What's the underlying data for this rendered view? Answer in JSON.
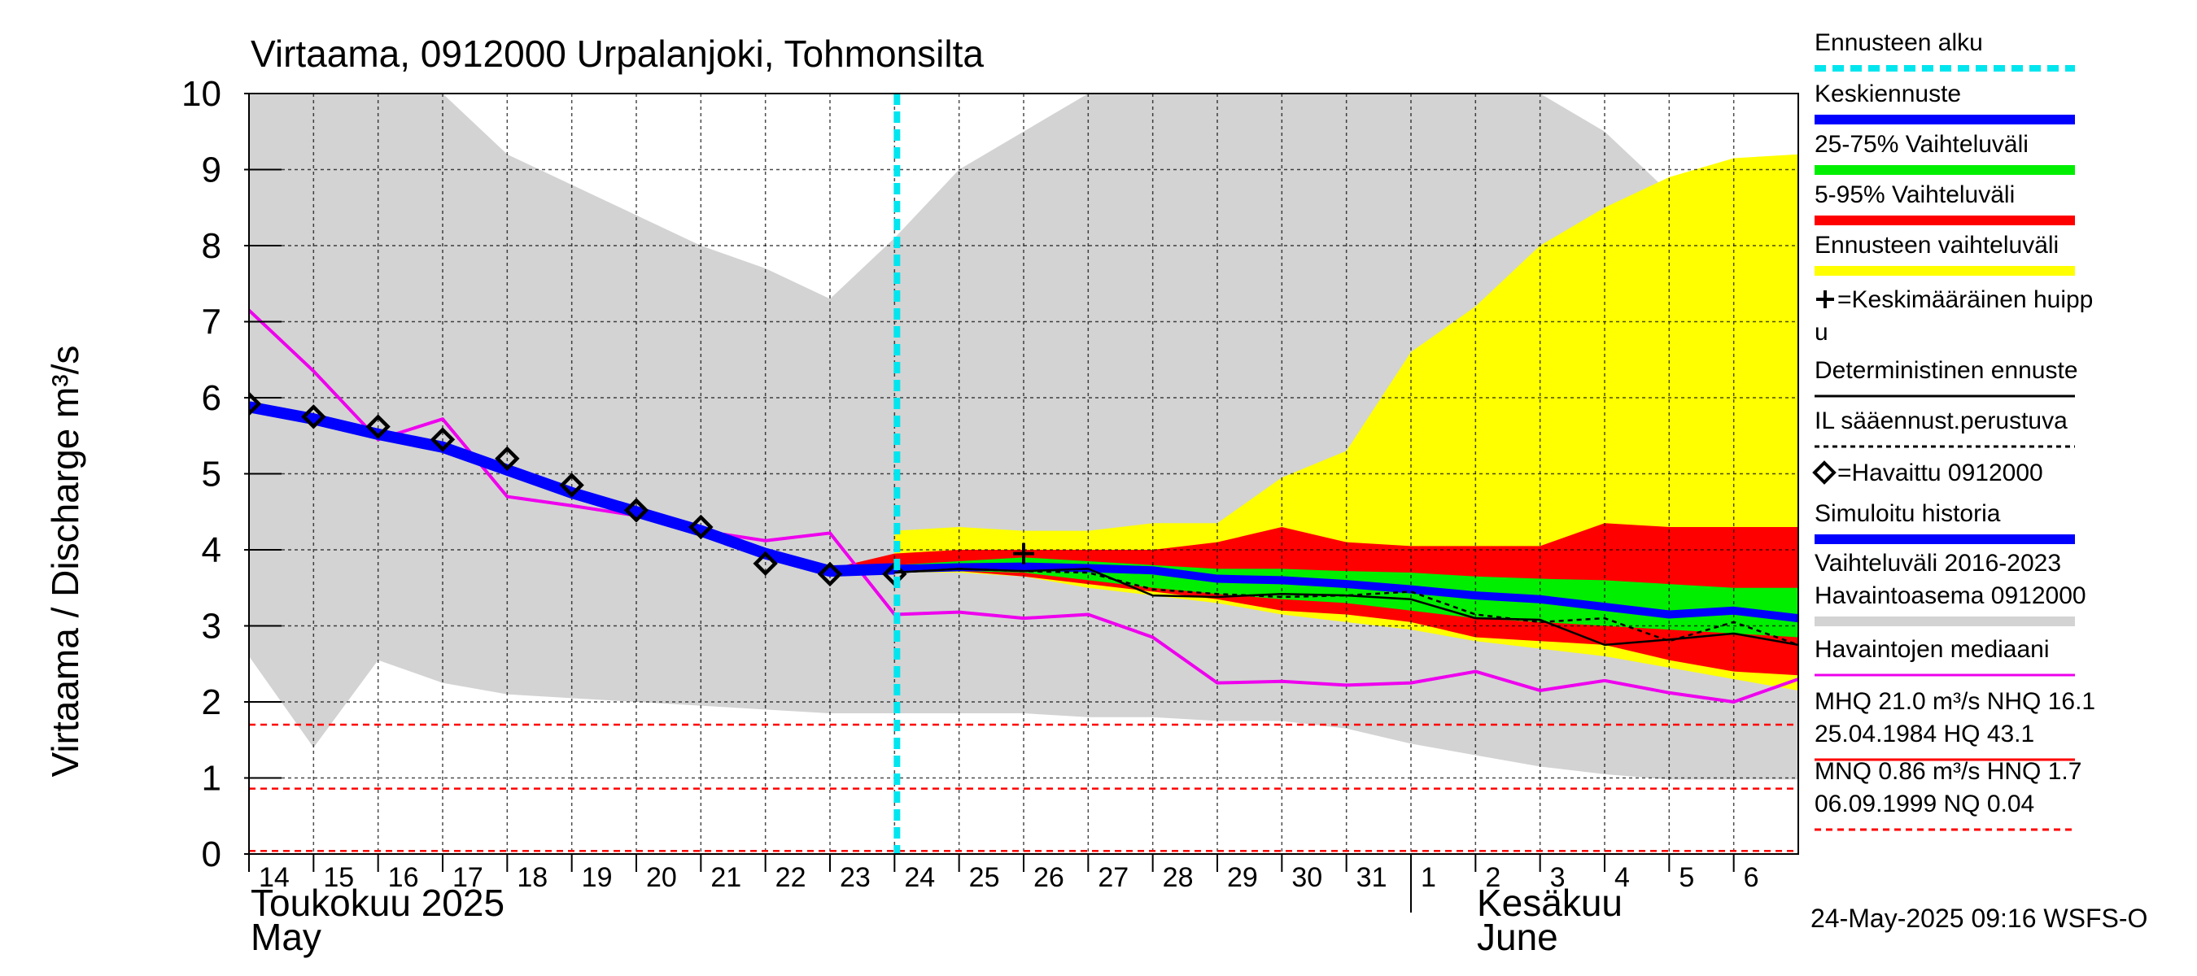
{
  "title": "Virtaama, 0912000 Urpalanjoki, Tohmonsilta",
  "y_axis_label": "Virtaama / Discharge    m³/s",
  "month_labels": {
    "may_fi": "Toukokuu  2025",
    "may_en": "May",
    "june_fi": "Kesäkuu",
    "june_en": "June"
  },
  "timestamp": "24-May-2025 09:16 WSFS-O",
  "legend": [
    {
      "id": "forecast_start",
      "label": "Ennusteen alku",
      "color": "#00e5ee",
      "style": "dashed"
    },
    {
      "id": "mean_forecast",
      "label": "Keskiennuste",
      "color": "#0000ff",
      "style": "line"
    },
    {
      "id": "range_25_75",
      "label": "25-75% Vaihteluväli",
      "color": "#00ee00",
      "style": "line"
    },
    {
      "id": "range_5_95",
      "label": "5-95% Vaihteluväli",
      "color": "#ff0000",
      "style": "line"
    },
    {
      "id": "forecast_range",
      "label": "Ennusteen vaihteluväli",
      "color": "#ffff00",
      "style": "line"
    },
    {
      "id": "mean_peak",
      "label": "=Keskimääräinen huippu",
      "line2": "",
      "color": "#000000",
      "style": "plus"
    },
    {
      "id": "deterministic",
      "label": "Deterministinen ennuste",
      "color": "#000000",
      "style": "thin"
    },
    {
      "id": "il_based",
      "label": "IL sääennust.perustuva",
      "color": "#000000",
      "style": "dotted"
    },
    {
      "id": "observed",
      "label": "=Havaittu 0912000",
      "color": "#000000",
      "style": "diamond"
    },
    {
      "id": "simulated",
      "label": "Simuloitu historia",
      "color": "#0000ff",
      "style": "line"
    },
    {
      "id": "hist_range",
      "label": "Vaihteluväli 2016-2023",
      "line2": " Havaintoasema 0912000",
      "color": "#d3d3d3",
      "style": "line"
    },
    {
      "id": "obs_median",
      "label": "Havaintojen mediaani",
      "color": "#ee00ee",
      "style": "thin"
    },
    {
      "id": "mhq",
      "label": "MHQ 21.0 m³/s NHQ 16.1",
      "line2": "25.04.1984 HQ 43.1",
      "color": "#ff0000",
      "style": "thin"
    },
    {
      "id": "mnq",
      "label": "MNQ 0.86 m³/s HNQ  1.7",
      "line2": "06.09.1999 NQ 0.04",
      "color": "#ff0000",
      "style": "dashed"
    }
  ],
  "chart_data": {
    "type": "line",
    "title": "Virtaama, 0912000 Urpalanjoki, Tohmonsilta",
    "ylabel": "Virtaama / Discharge    m³/s",
    "ylim": [
      0,
      10
    ],
    "yticks": [
      0,
      1,
      2,
      3,
      4,
      5,
      6,
      7,
      8,
      9,
      10
    ],
    "x_start": "2025-05-14",
    "x_end": "2025-06-07",
    "x_tick_labels": [
      "14",
      "15",
      "16",
      "17",
      "18",
      "19",
      "20",
      "21",
      "22",
      "23",
      "24",
      "25",
      "26",
      "27",
      "28",
      "29",
      "30",
      "31",
      "1",
      "2",
      "3",
      "4",
      "5",
      "6"
    ],
    "forecast_start": "2025-05-24",
    "grid": true,
    "legend_position": "right",
    "hist_range": {
      "x": [
        "2025-05-14",
        "2025-05-15",
        "2025-05-16",
        "2025-05-17",
        "2025-05-18",
        "2025-05-19",
        "2025-05-20",
        "2025-05-21",
        "2025-05-22",
        "2025-05-23",
        "2025-05-24",
        "2025-05-25",
        "2025-05-26",
        "2025-05-27",
        "2025-05-28",
        "2025-05-29",
        "2025-05-30",
        "2025-05-31",
        "2025-06-01",
        "2025-06-02",
        "2025-06-03",
        "2025-06-04",
        "2025-06-05",
        "2025-06-06",
        "2025-06-07"
      ],
      "upper": [
        10,
        10,
        10,
        10,
        9.2,
        8.8,
        8.4,
        8.0,
        7.7,
        7.3,
        8.1,
        9.0,
        9.5,
        10,
        10,
        10,
        10,
        10,
        10,
        10,
        10,
        9.5,
        8.7,
        8.1,
        7.6
      ],
      "lower": [
        2.6,
        1.4,
        2.55,
        2.25,
        2.1,
        2.05,
        2.0,
        1.95,
        1.9,
        1.85,
        1.85,
        1.85,
        1.85,
        1.8,
        1.8,
        1.75,
        1.75,
        1.65,
        1.45,
        1.3,
        1.15,
        1.05,
        0.98,
        0.98,
        0.98
      ]
    },
    "forecast_range": {
      "x": [
        "2025-05-24",
        "2025-05-25",
        "2025-05-26",
        "2025-05-27",
        "2025-05-28",
        "2025-05-29",
        "2025-05-30",
        "2025-05-31",
        "2025-06-01",
        "2025-06-02",
        "2025-06-03",
        "2025-06-04",
        "2025-06-05",
        "2025-06-06",
        "2025-06-07"
      ],
      "upper": [
        4.25,
        4.3,
        4.25,
        4.25,
        4.35,
        4.35,
        4.95,
        5.3,
        6.6,
        7.2,
        8.0,
        8.5,
        8.9,
        9.15,
        9.2
      ],
      "lower": [
        3.7,
        3.7,
        3.65,
        3.5,
        3.4,
        3.3,
        3.15,
        3.05,
        2.95,
        2.8,
        2.7,
        2.6,
        2.45,
        2.3,
        2.15
      ]
    },
    "range_5_95": {
      "x": [
        "2025-05-23",
        "2025-05-24",
        "2025-05-25",
        "2025-05-26",
        "2025-05-27",
        "2025-05-28",
        "2025-05-29",
        "2025-05-30",
        "2025-05-31",
        "2025-06-01",
        "2025-06-02",
        "2025-06-03",
        "2025-06-04",
        "2025-06-05",
        "2025-06-06",
        "2025-06-07"
      ],
      "upper": [
        3.75,
        3.95,
        4.0,
        4.0,
        4.0,
        4.0,
        4.1,
        4.3,
        4.1,
        4.05,
        4.05,
        4.05,
        4.35,
        4.3,
        4.3,
        4.3
      ],
      "lower": [
        3.7,
        3.72,
        3.72,
        3.65,
        3.55,
        3.45,
        3.35,
        3.2,
        3.15,
        3.05,
        2.85,
        2.8,
        2.75,
        2.55,
        2.4,
        2.35
      ]
    },
    "range_25_75": {
      "x": [
        "2025-05-24",
        "2025-05-25",
        "2025-05-26",
        "2025-05-27",
        "2025-05-28",
        "2025-05-29",
        "2025-05-30",
        "2025-05-31",
        "2025-06-01",
        "2025-06-02",
        "2025-06-03",
        "2025-06-04",
        "2025-06-05",
        "2025-06-06",
        "2025-06-07"
      ],
      "upper": [
        3.8,
        3.85,
        3.9,
        3.85,
        3.8,
        3.75,
        3.75,
        3.72,
        3.7,
        3.65,
        3.62,
        3.6,
        3.55,
        3.5,
        3.5
      ],
      "lower": [
        3.72,
        3.72,
        3.7,
        3.6,
        3.5,
        3.42,
        3.35,
        3.3,
        3.2,
        3.1,
        3.05,
        3.0,
        2.95,
        2.9,
        2.85
      ]
    },
    "mean_forecast": {
      "x": [
        "2025-05-24",
        "2025-05-25",
        "2025-05-26",
        "2025-05-27",
        "2025-05-28",
        "2025-05-29",
        "2025-05-30",
        "2025-05-31",
        "2025-06-01",
        "2025-06-02",
        "2025-06-03",
        "2025-06-04",
        "2025-06-05",
        "2025-06-06",
        "2025-06-07"
      ],
      "y": [
        3.75,
        3.77,
        3.78,
        3.76,
        3.73,
        3.62,
        3.6,
        3.55,
        3.48,
        3.4,
        3.35,
        3.25,
        3.15,
        3.2,
        3.1
      ]
    },
    "simulated": {
      "x": [
        "2025-05-14",
        "2025-05-15",
        "2025-05-16",
        "2025-05-17",
        "2025-05-18",
        "2025-05-19",
        "2025-05-20",
        "2025-05-21",
        "2025-05-22",
        "2025-05-23",
        "2025-05-24"
      ],
      "y": [
        5.88,
        5.72,
        5.52,
        5.35,
        5.05,
        4.75,
        4.5,
        4.25,
        3.95,
        3.72,
        3.75
      ]
    },
    "observed": {
      "x": [
        "2025-05-14",
        "2025-05-15",
        "2025-05-16",
        "2025-05-17",
        "2025-05-18",
        "2025-05-19",
        "2025-05-20",
        "2025-05-21",
        "2025-05-22",
        "2025-05-23",
        "2025-05-24"
      ],
      "y": [
        5.92,
        5.75,
        5.62,
        5.45,
        5.2,
        4.85,
        4.52,
        4.3,
        3.82,
        3.68,
        3.68
      ]
    },
    "deterministic": {
      "x": [
        "2025-05-24",
        "2025-05-25",
        "2025-05-26",
        "2025-05-27",
        "2025-05-28",
        "2025-05-29",
        "2025-05-30",
        "2025-05-31",
        "2025-06-01",
        "2025-06-02",
        "2025-06-03",
        "2025-06-04",
        "2025-06-05",
        "2025-06-06",
        "2025-06-07"
      ],
      "y": [
        3.7,
        3.75,
        3.72,
        3.75,
        3.4,
        3.38,
        3.42,
        3.4,
        3.35,
        3.1,
        3.08,
        2.75,
        2.82,
        2.9,
        2.75
      ]
    },
    "il_based": {
      "x": [
        "2025-05-24",
        "2025-05-25",
        "2025-05-26",
        "2025-05-27",
        "2025-05-28",
        "2025-05-29",
        "2025-05-30",
        "2025-05-31",
        "2025-06-01",
        "2025-06-02",
        "2025-06-03",
        "2025-06-04",
        "2025-06-05",
        "2025-06-06",
        "2025-06-07"
      ],
      "y": [
        3.7,
        3.75,
        3.72,
        3.7,
        3.48,
        3.42,
        3.38,
        3.4,
        3.45,
        3.15,
        3.05,
        3.1,
        2.8,
        3.05,
        2.75
      ]
    },
    "obs_median": {
      "x": [
        "2025-05-14",
        "2025-05-15",
        "2025-05-16",
        "2025-05-17",
        "2025-05-18",
        "2025-05-19",
        "2025-05-20",
        "2025-05-21",
        "2025-05-22",
        "2025-05-23",
        "2025-05-24",
        "2025-05-25",
        "2025-05-26",
        "2025-05-27",
        "2025-05-28",
        "2025-05-29",
        "2025-05-30",
        "2025-05-31",
        "2025-06-01",
        "2025-06-02",
        "2025-06-03",
        "2025-06-04",
        "2025-06-05",
        "2025-06-06",
        "2025-06-07"
      ],
      "y": [
        7.15,
        6.35,
        5.45,
        5.72,
        4.7,
        4.58,
        4.45,
        4.25,
        4.12,
        4.22,
        3.15,
        3.18,
        3.1,
        3.15,
        2.85,
        2.25,
        2.27,
        2.22,
        2.25,
        2.4,
        2.15,
        2.28,
        2.12,
        2.0,
        2.3
      ]
    },
    "mean_peak": {
      "x": "2025-05-26",
      "y": 3.95
    },
    "reference_lines": {
      "MHQ_NHQ_level": 1.7,
      "MNQ_level": 0.86,
      "NQ_level": 0.04
    }
  },
  "colors": {
    "hist_range": "#d3d3d3",
    "forecast_range": "#ffff00",
    "range_5_95": "#ff0000",
    "range_25_75": "#00ee00",
    "mean": "#0000ff",
    "median": "#ee00ee",
    "forecast_start": "#00e5ee",
    "grid": "#000000"
  }
}
